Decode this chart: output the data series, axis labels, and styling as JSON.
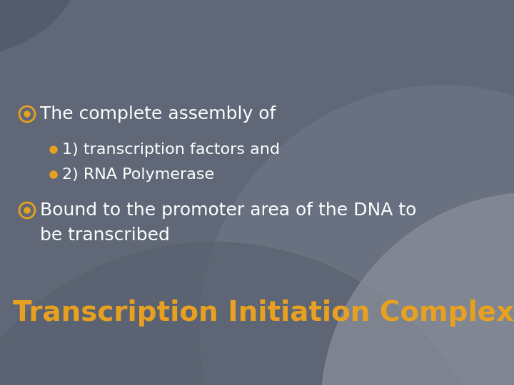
{
  "title": "Transcription Initiation Complex",
  "title_color": "#E8A020",
  "title_fontsize": 28,
  "bg_color_main": "#606878",
  "bg_color_dark1": "#555f6e",
  "bg_color_dark2": "#707880",
  "bg_color_circle1": "#5a6270",
  "bg_color_circle2": "#8a8e95",
  "bullet1_text": "The complete assembly of",
  "sub_bullet1": "1) transcription factors and",
  "sub_bullet2": "2) RNA Polymerase",
  "bullet2_line1": "Bound to the promoter area of the DNA to",
  "bullet2_line2": "be transcribed",
  "bullet_color": "#E8A020",
  "sub_bullet_color": "#E8A020",
  "text_color": "#FFFFFF",
  "main_fontsize": 18,
  "sub_fontsize": 16,
  "figwidth": 7.2,
  "figheight": 5.4
}
